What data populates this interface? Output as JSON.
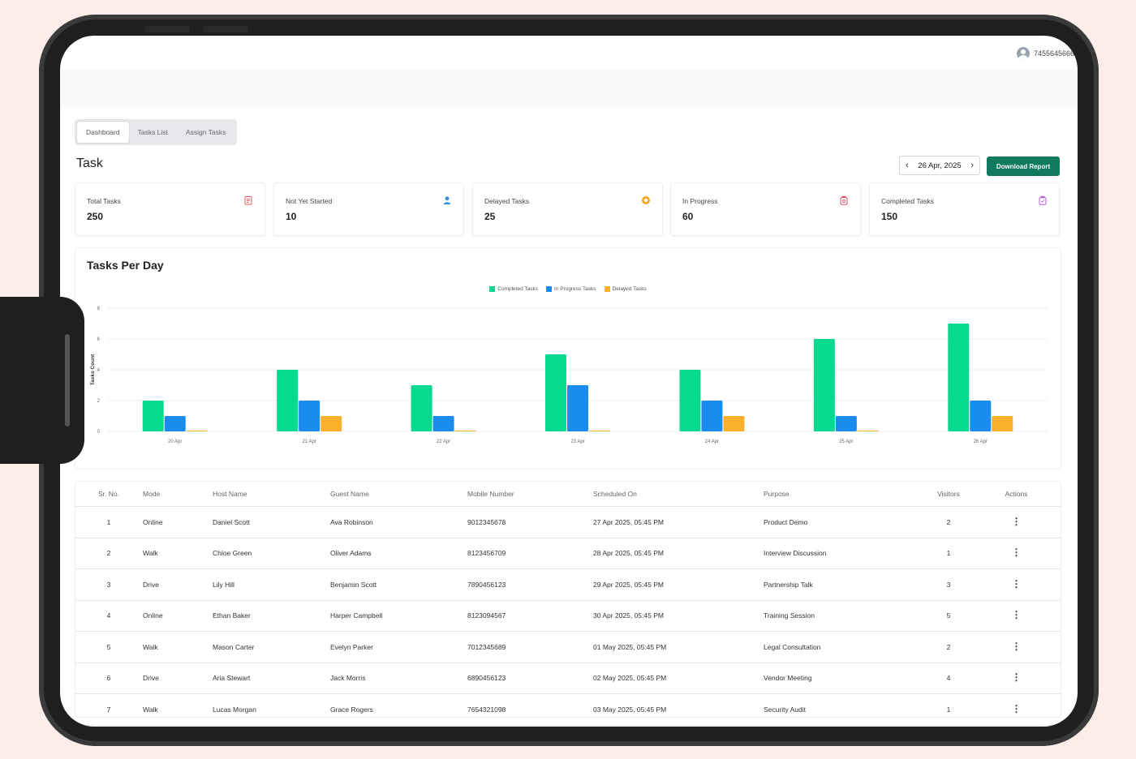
{
  "header": {
    "user_id": "7455645666"
  },
  "tabs": [
    {
      "label": "Dashboard",
      "active": true
    },
    {
      "label": "Tasks List",
      "active": false
    },
    {
      "label": "Assign Tasks",
      "active": false
    }
  ],
  "page": {
    "title": "Task",
    "date": "26 Apr, 2025",
    "download_label": "Download Report"
  },
  "stats": [
    {
      "label": "Total Tasks",
      "value": "250",
      "icon": "clipboard-icon",
      "color": "#e05a5a"
    },
    {
      "label": "Not Yet Started",
      "value": "10",
      "icon": "person-icon",
      "color": "#2d8fe6"
    },
    {
      "label": "Delayed Tasks",
      "value": "25",
      "icon": "clock-icon",
      "color": "#f5a623"
    },
    {
      "label": "In Progress",
      "value": "60",
      "icon": "jar-icon",
      "color": "#e0556b"
    },
    {
      "label": "Completed Tasks",
      "value": "150",
      "icon": "jar-check-icon",
      "color": "#b05fd0"
    }
  ],
  "chart_data": {
    "type": "bar",
    "title": "Tasks Per Day",
    "ylabel": "Tasks Count",
    "xlabel": "",
    "ylim": [
      0,
      8
    ],
    "yticks": [
      "0",
      "2",
      "4",
      "6",
      "8"
    ],
    "categories": [
      "20 Apr",
      "21 Apr",
      "22 Apr",
      "23 Apr",
      "24 Apr",
      "25 Apr",
      "26 Apr"
    ],
    "series": [
      {
        "name": "Completed Tasks",
        "color": "#07d98e",
        "values": [
          2,
          4,
          3,
          5,
          4,
          6,
          7
        ]
      },
      {
        "name": "In Progress Tasks",
        "color": "#1a8cf0",
        "values": [
          1,
          2,
          1,
          3,
          2,
          1,
          2
        ]
      },
      {
        "name": "Delayed Tasks",
        "color": "#fbb12c",
        "values": [
          0,
          1,
          0,
          0,
          1,
          0,
          1
        ]
      }
    ],
    "legend": "top-center",
    "grid": true
  },
  "table": {
    "columns": [
      "Sr. No.",
      "Mode",
      "Host Name",
      "Guest Name",
      "Mobile Number",
      "Scheduled On",
      "Purpose",
      "Visitors",
      "Actions"
    ],
    "rows": [
      [
        "1",
        "Online",
        "Daniel Scott",
        "Ava Robinson",
        "9012345678",
        "27 Apr 2025, 05:45 PM",
        "Product Demo",
        "2"
      ],
      [
        "2",
        "Walk",
        "Chloe Green",
        "Oliver Adams",
        "8123456709",
        "28 Apr 2025, 05:45 PM",
        "Interview Discussion",
        "1"
      ],
      [
        "3",
        "Drive",
        "Lily Hill",
        "Benjamin Scott",
        "7890456123",
        "29 Apr 2025, 05:45 PM",
        "Partnership Talk",
        "3"
      ],
      [
        "4",
        "Online",
        "Ethan Baker",
        "Harper Campbell",
        "8123094567",
        "30 Apr 2025, 05:45 PM",
        "Training Session",
        "5"
      ],
      [
        "5",
        "Walk",
        "Mason Carter",
        "Evelyn Parker",
        "7012345689",
        "01 May 2025, 05:45 PM",
        "Legal Consultation",
        "2"
      ],
      [
        "6",
        "Drive",
        "Aria Stewart",
        "Jack Morris",
        "6890456123",
        "02 May 2025, 05:45 PM",
        "Vendor Meeting",
        "4"
      ],
      [
        "7",
        "Walk",
        "Lucas Morgan",
        "Grace Rogers",
        "7654321098",
        "03 May 2025, 05:45 PM",
        "Security Audit",
        "1"
      ]
    ]
  }
}
